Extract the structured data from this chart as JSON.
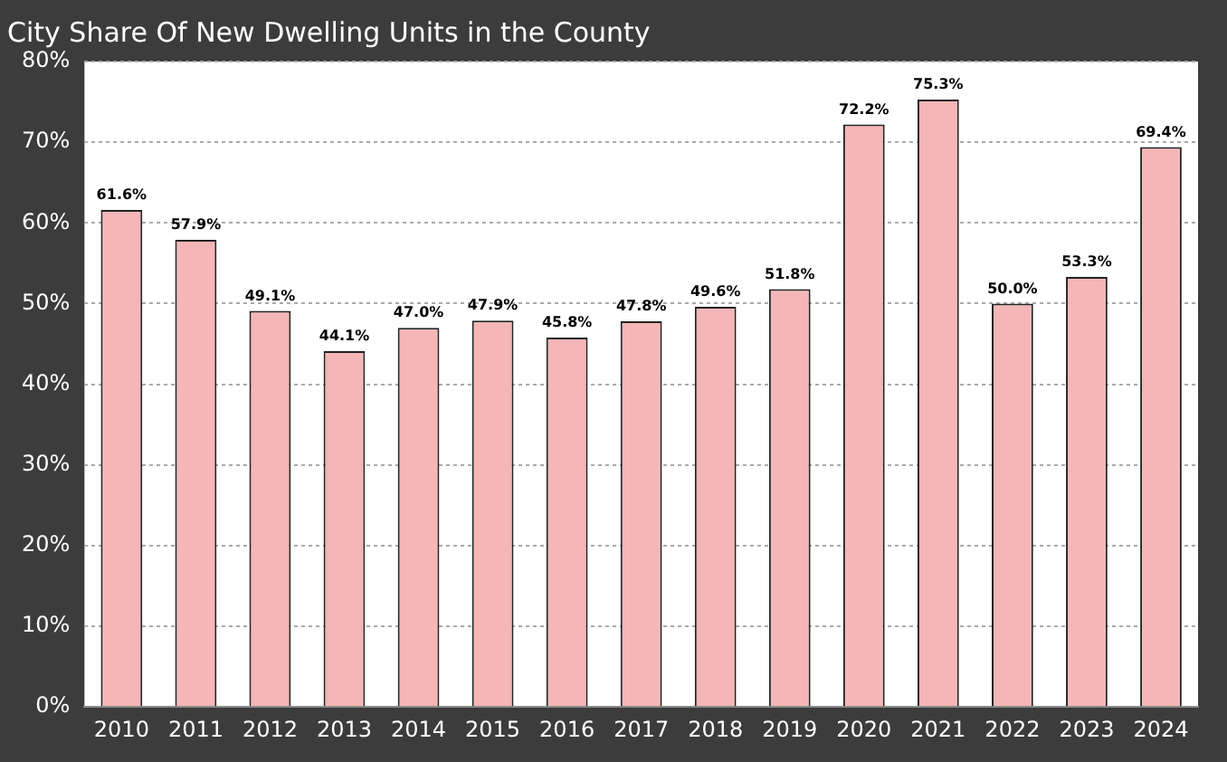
{
  "chart_data": {
    "type": "bar",
    "title": "City Share Of New Dwelling Units in the County",
    "categories": [
      "2010",
      "2011",
      "2012",
      "2013",
      "2014",
      "2015",
      "2016",
      "2017",
      "2018",
      "2019",
      "2020",
      "2021",
      "2022",
      "2023",
      "2024"
    ],
    "values": [
      61.6,
      57.9,
      49.1,
      44.1,
      47.0,
      47.9,
      45.8,
      47.8,
      49.6,
      51.8,
      72.2,
      75.3,
      50.0,
      53.3,
      69.4
    ],
    "value_labels": [
      "61.6%",
      "57.9%",
      "49.1%",
      "44.1%",
      "47.0%",
      "47.9%",
      "45.8%",
      "47.8%",
      "49.6%",
      "51.8%",
      "72.2%",
      "75.3%",
      "50.0%",
      "53.3%",
      "69.4%"
    ],
    "color": "#f4b6b6",
    "ylim": [
      0,
      80
    ],
    "yticks": [
      {
        "value": 0,
        "label": "0%"
      },
      {
        "value": 10,
        "label": "10%"
      },
      {
        "value": 20,
        "label": "20%"
      },
      {
        "value": 30,
        "label": "30%"
      },
      {
        "value": 40,
        "label": "40%"
      },
      {
        "value": 50,
        "label": "50%"
      },
      {
        "value": 60,
        "label": "60%"
      },
      {
        "value": 70,
        "label": "70%"
      },
      {
        "value": 80,
        "label": "80%"
      }
    ],
    "grid": "y",
    "legend": false
  }
}
